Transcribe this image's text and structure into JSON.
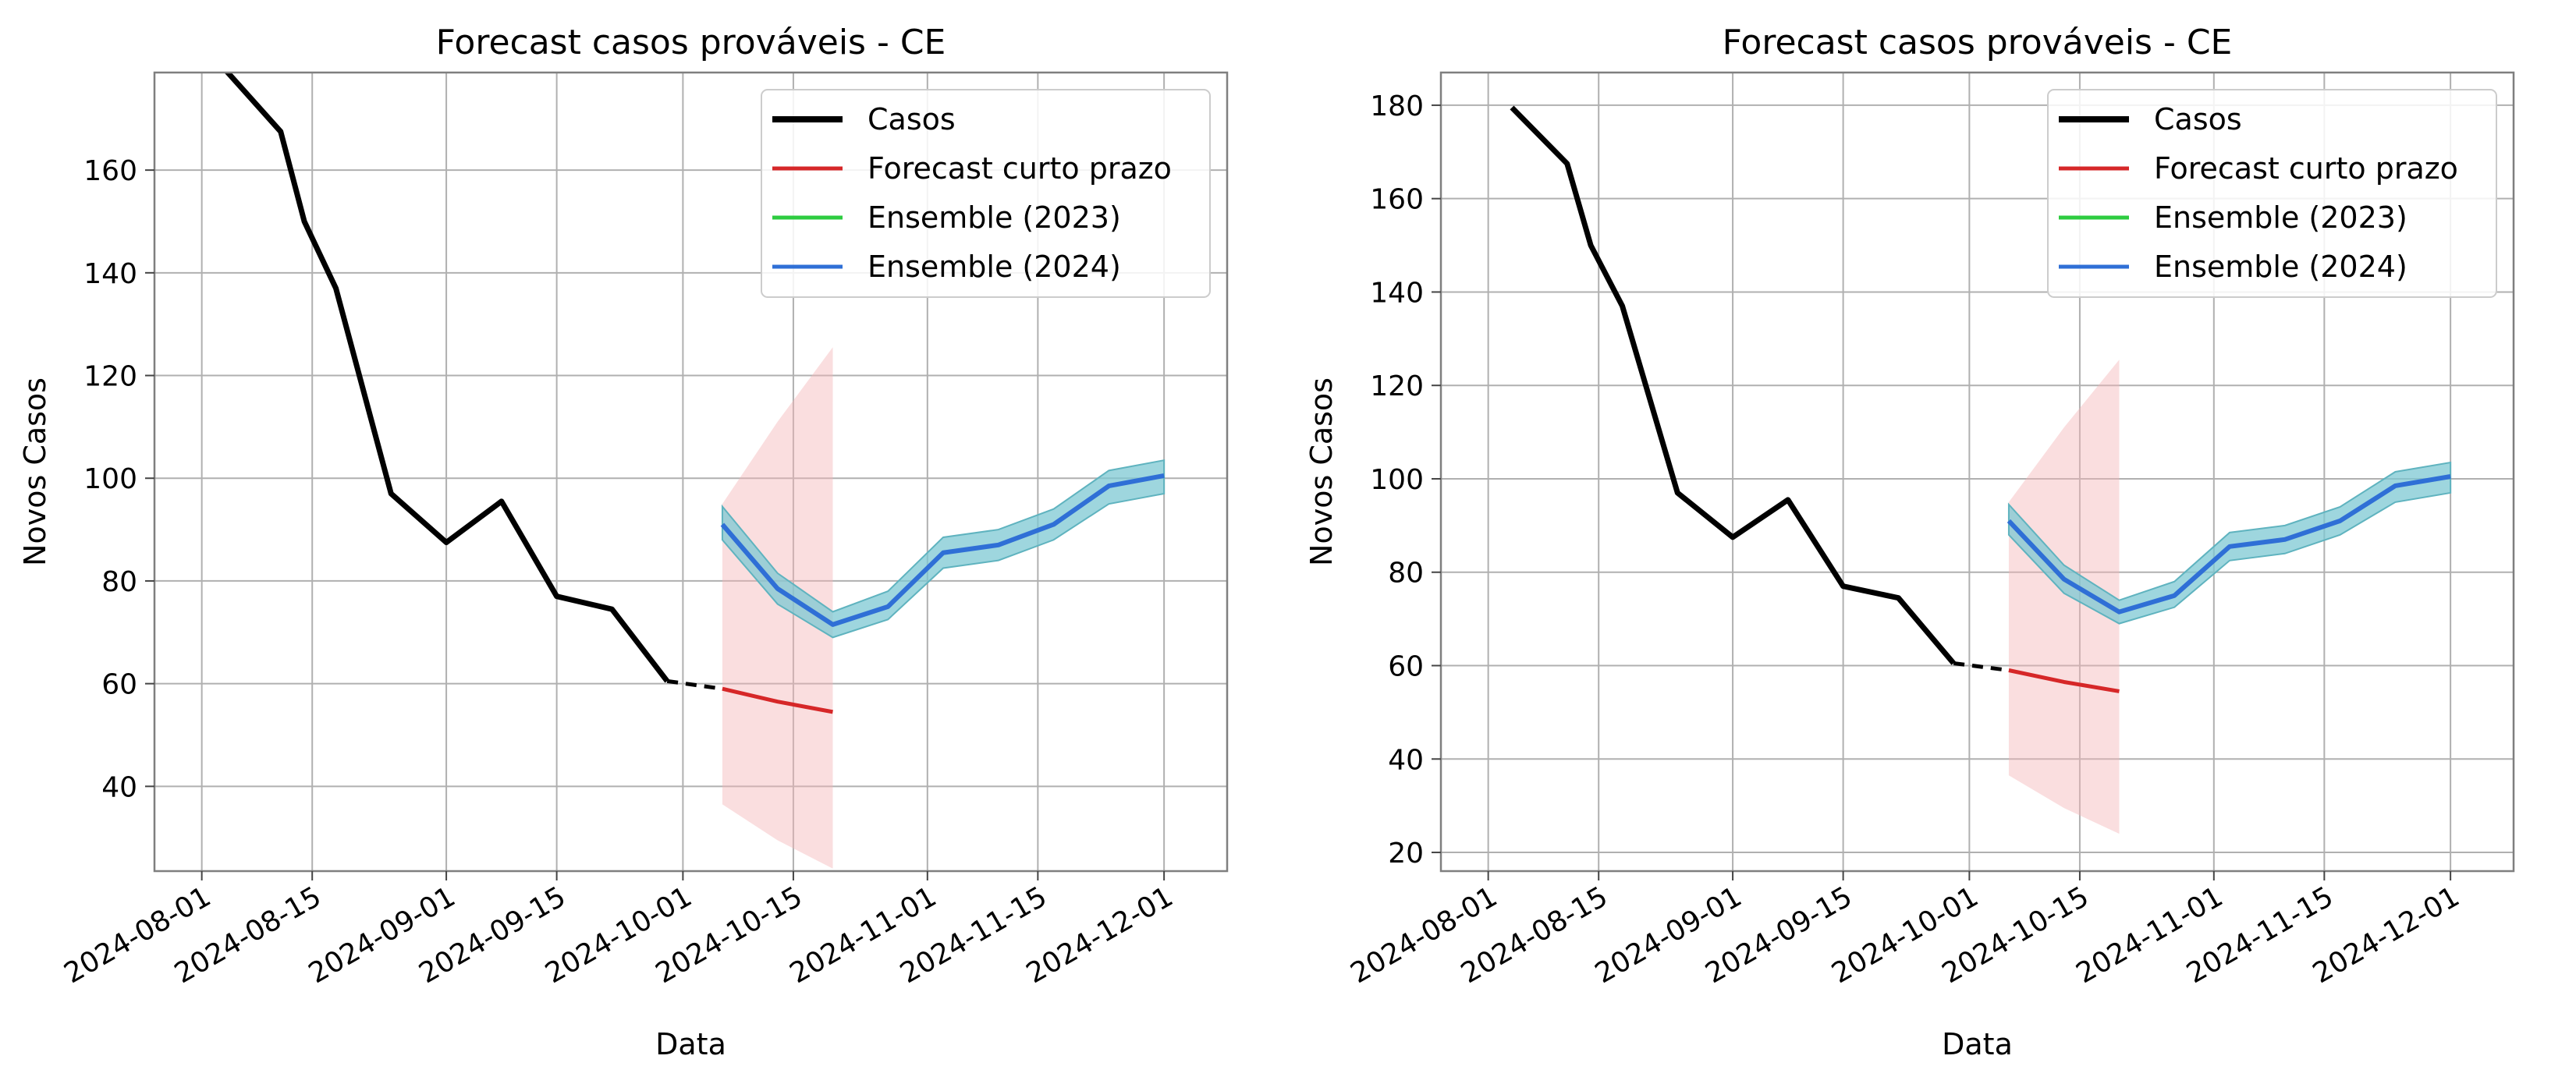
{
  "colors": {
    "casos": "#000000",
    "forecast": "#d62728",
    "forecast_band": "#f4b6b9",
    "ensemble_2023": "#2ecc40",
    "ensemble_2024": "#2f6fd6",
    "ensemble_band": "#7ec8d3",
    "grid": "#b0b0b0",
    "axes": "#7f7f7f"
  },
  "chart_data": [
    {
      "type": "line",
      "title": "Forecast casos prováveis - CE",
      "xlabel": "Data",
      "ylabel": "Novos Casos",
      "xlim": [
        "2024-07-26",
        "2024-12-09"
      ],
      "ylim": [
        23.5,
        179
      ],
      "xticks": [
        "2024-08-01",
        "2024-08-15",
        "2024-09-01",
        "2024-09-15",
        "2024-10-01",
        "2024-10-15",
        "2024-11-01",
        "2024-11-15",
        "2024-12-01"
      ],
      "yticks": [
        40,
        60,
        80,
        100,
        120,
        140,
        160
      ],
      "grid": true,
      "legend_position": "upper right",
      "legend": [
        "Casos",
        "Forecast curto prazo",
        "Ensemble (2023)",
        "Ensemble (2024)"
      ],
      "series": [
        {
          "name": "Casos",
          "x": [
            "2024-07-28",
            "2024-08-04",
            "2024-08-11",
            "2024-08-14",
            "2024-08-18",
            "2024-08-25",
            "2024-09-01",
            "2024-09-08",
            "2024-09-15",
            "2024-09-22",
            "2024-09-29"
          ],
          "y": [
            183,
            179.5,
            167.5,
            150,
            137,
            97,
            87.5,
            95.5,
            77,
            74.5,
            60.5
          ]
        },
        {
          "name": "Casos (link)",
          "style": "dashed",
          "x": [
            "2024-09-29",
            "2024-10-06"
          ],
          "y": [
            60.5,
            59
          ]
        },
        {
          "name": "Forecast curto prazo",
          "x": [
            "2024-10-06",
            "2024-10-13",
            "2024-10-20"
          ],
          "y": [
            59,
            56.5,
            54.5
          ],
          "lower": [
            36.5,
            29.5,
            24
          ],
          "upper": [
            95,
            111,
            125.5
          ]
        },
        {
          "name": "Ensemble (2023)",
          "x": [],
          "y": []
        },
        {
          "name": "Ensemble (2024)",
          "x": [
            "2024-10-06",
            "2024-10-13",
            "2024-10-20",
            "2024-10-27",
            "2024-11-03",
            "2024-11-10",
            "2024-11-17",
            "2024-11-24",
            "2024-12-01"
          ],
          "y": [
            91,
            78.5,
            71.5,
            75,
            85.5,
            87,
            91,
            98.5,
            100.5
          ],
          "lower": [
            88,
            75.5,
            69,
            72.5,
            82.5,
            84,
            88,
            95,
            97
          ],
          "upper": [
            94.5,
            81.5,
            74,
            78,
            88.5,
            90,
            94,
            101.5,
            103.5
          ]
        }
      ]
    },
    {
      "type": "line",
      "title": "Forecast casos prováveis - CE",
      "xlabel": "Data",
      "ylabel": "Novos Casos",
      "xlim": [
        "2024-07-26",
        "2024-12-09"
      ],
      "ylim": [
        16,
        187
      ],
      "xticks": [
        "2024-08-01",
        "2024-08-15",
        "2024-09-01",
        "2024-09-15",
        "2024-10-01",
        "2024-10-15",
        "2024-11-01",
        "2024-11-15",
        "2024-12-01"
      ],
      "yticks": [
        20,
        40,
        60,
        80,
        100,
        120,
        140,
        160,
        180
      ],
      "grid": true,
      "legend_position": "upper right",
      "legend": [
        "Casos",
        "Forecast curto prazo",
        "Ensemble (2023)",
        "Ensemble (2024)"
      ],
      "series": [
        {
          "name": "Casos",
          "x": [
            "2024-08-04",
            "2024-08-11",
            "2024-08-14",
            "2024-08-18",
            "2024-08-25",
            "2024-09-01",
            "2024-09-08",
            "2024-09-15",
            "2024-09-22",
            "2024-09-29"
          ],
          "y": [
            179.5,
            167.5,
            150,
            137,
            97,
            87.5,
            95.5,
            77,
            74.5,
            60.5
          ]
        },
        {
          "name": "Casos (link)",
          "style": "dashed",
          "x": [
            "2024-09-29",
            "2024-10-06"
          ],
          "y": [
            60.5,
            59
          ]
        },
        {
          "name": "Forecast curto prazo",
          "x": [
            "2024-10-06",
            "2024-10-13",
            "2024-10-20"
          ],
          "y": [
            59,
            56.5,
            54.5
          ],
          "lower": [
            36.5,
            29.5,
            24
          ],
          "upper": [
            95,
            111,
            125.5
          ]
        },
        {
          "name": "Ensemble (2023)",
          "x": [],
          "y": []
        },
        {
          "name": "Ensemble (2024)",
          "x": [
            "2024-10-06",
            "2024-10-13",
            "2024-10-20",
            "2024-10-27",
            "2024-11-03",
            "2024-11-10",
            "2024-11-17",
            "2024-11-24",
            "2024-12-01"
          ],
          "y": [
            91,
            78.5,
            71.5,
            75,
            85.5,
            87,
            91,
            98.5,
            100.5
          ],
          "lower": [
            88,
            75.5,
            69,
            72.5,
            82.5,
            84,
            88,
            95,
            97
          ],
          "upper": [
            94.5,
            81.5,
            74,
            78,
            88.5,
            90,
            94,
            101.5,
            103.5
          ]
        }
      ]
    }
  ]
}
